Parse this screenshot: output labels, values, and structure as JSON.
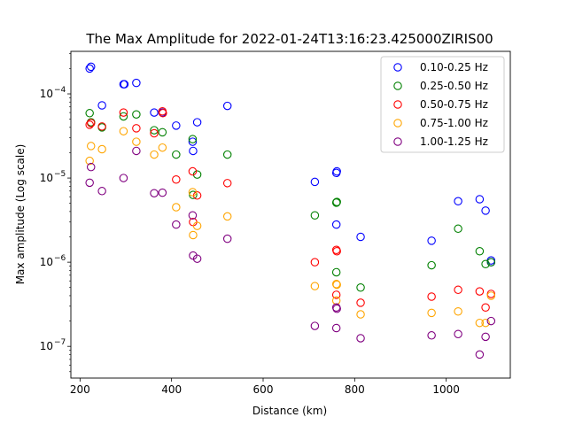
{
  "chart_data": {
    "type": "scatter",
    "title": "The Max Amplitude for 2022-01-24T13:16:23.425000ZIRIS00",
    "xlabel": "Distance (km)",
    "ylabel": "Max amplitude (Log scale)",
    "xlim": [
      180,
      1140
    ],
    "ylim": [
      4.2e-08,
      0.00032
    ],
    "yscale": "log",
    "x_ticks": [
      200,
      400,
      600,
      800,
      1000
    ],
    "x_tick_labels": [
      "200",
      "400",
      "600",
      "800",
      "1000"
    ],
    "y_ticks": [
      1e-07,
      1e-06,
      1e-05,
      0.0001
    ],
    "y_tick_exponents": [
      "−7",
      "−6",
      "−5",
      "−4"
    ],
    "y_tick_base": "10",
    "grid": false,
    "legend_position": "top-right",
    "marker": "hollow-circle",
    "series": [
      {
        "name": "0.10-0.25 Hz",
        "color": "#0000ff",
        "points": [
          [
            221,
            0.0002
          ],
          [
            224,
            0.00021
          ],
          [
            248,
            7.3e-05
          ],
          [
            295,
            0.00013
          ],
          [
            297,
            0.00013
          ],
          [
            323,
            0.000135
          ],
          [
            362,
            6e-05
          ],
          [
            380,
            6e-05
          ],
          [
            410,
            4.2e-05
          ],
          [
            446,
            2.7e-05
          ],
          [
            447,
            2.1e-05
          ],
          [
            456,
            4.6e-05
          ],
          [
            522,
            7.2e-05
          ],
          [
            713,
            9e-06
          ],
          [
            760,
            1.15e-05
          ],
          [
            761,
            1.2e-05
          ],
          [
            760,
            2.8e-06
          ],
          [
            813,
            2e-06
          ],
          [
            968,
            1.8e-06
          ],
          [
            1026,
            5.3e-06
          ],
          [
            1073,
            5.6e-06
          ],
          [
            1086,
            4.1e-06
          ],
          [
            1098,
            1.05e-06
          ],
          [
            1098,
            1e-06
          ]
        ]
      },
      {
        "name": "0.25-0.50 Hz",
        "color": "#008000",
        "points": [
          [
            221,
            5.9e-05
          ],
          [
            224,
            4.6e-05
          ],
          [
            248,
            4e-05
          ],
          [
            295,
            5.4e-05
          ],
          [
            323,
            5.7e-05
          ],
          [
            362,
            3.7e-05
          ],
          [
            380,
            3.5e-05
          ],
          [
            410,
            1.9e-05
          ],
          [
            446,
            2.9e-05
          ],
          [
            447,
            6.3e-06
          ],
          [
            456,
            1.1e-05
          ],
          [
            522,
            1.9e-05
          ],
          [
            713,
            3.6e-06
          ],
          [
            760,
            5.1e-06
          ],
          [
            761,
            5.2e-06
          ],
          [
            760,
            7.6e-07
          ],
          [
            813,
            5e-07
          ],
          [
            968,
            9.2e-07
          ],
          [
            1026,
            2.5e-06
          ],
          [
            1073,
            1.35e-06
          ],
          [
            1086,
            9.5e-07
          ],
          [
            1098,
            1e-06
          ]
        ]
      },
      {
        "name": "0.50-0.75 Hz",
        "color": "#ff0000",
        "points": [
          [
            221,
            4.3e-05
          ],
          [
            224,
            4.5e-05
          ],
          [
            248,
            4.1e-05
          ],
          [
            295,
            6e-05
          ],
          [
            323,
            3.9e-05
          ],
          [
            362,
            3.4e-05
          ],
          [
            380,
            6.2e-05
          ],
          [
            381,
            5.9e-05
          ],
          [
            410,
            9.6e-06
          ],
          [
            446,
            1.2e-05
          ],
          [
            447,
            3e-06
          ],
          [
            456,
            6.2e-06
          ],
          [
            522,
            8.7e-06
          ],
          [
            713,
            1e-06
          ],
          [
            760,
            1.4e-06
          ],
          [
            761,
            1.35e-06
          ],
          [
            760,
            4.1e-07
          ],
          [
            813,
            3.3e-07
          ],
          [
            968,
            3.9e-07
          ],
          [
            1026,
            4.7e-07
          ],
          [
            1073,
            4.5e-07
          ],
          [
            1086,
            2.9e-07
          ],
          [
            1098,
            4.2e-07
          ]
        ]
      },
      {
        "name": "0.75-1.00 Hz",
        "color": "#ffa500",
        "points": [
          [
            221,
            1.6e-05
          ],
          [
            224,
            2.4e-05
          ],
          [
            248,
            2.2e-05
          ],
          [
            295,
            3.6e-05
          ],
          [
            323,
            2.7e-05
          ],
          [
            362,
            1.9e-05
          ],
          [
            380,
            2.3e-05
          ],
          [
            410,
            4.5e-06
          ],
          [
            446,
            6.8e-06
          ],
          [
            447,
            2.1e-06
          ],
          [
            456,
            2.7e-06
          ],
          [
            522,
            3.5e-06
          ],
          [
            713,
            5.2e-07
          ],
          [
            760,
            5.5e-07
          ],
          [
            761,
            5.4e-07
          ],
          [
            760,
            3.5e-07
          ],
          [
            813,
            2.4e-07
          ],
          [
            968,
            2.5e-07
          ],
          [
            1026,
            2.6e-07
          ],
          [
            1073,
            1.9e-07
          ],
          [
            1086,
            1.9e-07
          ],
          [
            1098,
            4e-07
          ]
        ]
      },
      {
        "name": "1.00-1.25 Hz",
        "color": "#800080",
        "points": [
          [
            221,
            8.8e-06
          ],
          [
            224,
            1.35e-05
          ],
          [
            248,
            7e-06
          ],
          [
            295,
            1e-05
          ],
          [
            323,
            2.1e-05
          ],
          [
            362,
            6.6e-06
          ],
          [
            380,
            6.7e-06
          ],
          [
            410,
            2.8e-06
          ],
          [
            446,
            3.6e-06
          ],
          [
            447,
            1.2e-06
          ],
          [
            456,
            1.1e-06
          ],
          [
            522,
            1.9e-06
          ],
          [
            713,
            1.75e-07
          ],
          [
            760,
            2.9e-07
          ],
          [
            761,
            2.8e-07
          ],
          [
            760,
            1.65e-07
          ],
          [
            813,
            1.25e-07
          ],
          [
            968,
            1.35e-07
          ],
          [
            1026,
            1.4e-07
          ],
          [
            1073,
            8e-08
          ],
          [
            1086,
            1.3e-07
          ],
          [
            1098,
            2e-07
          ]
        ]
      }
    ]
  }
}
